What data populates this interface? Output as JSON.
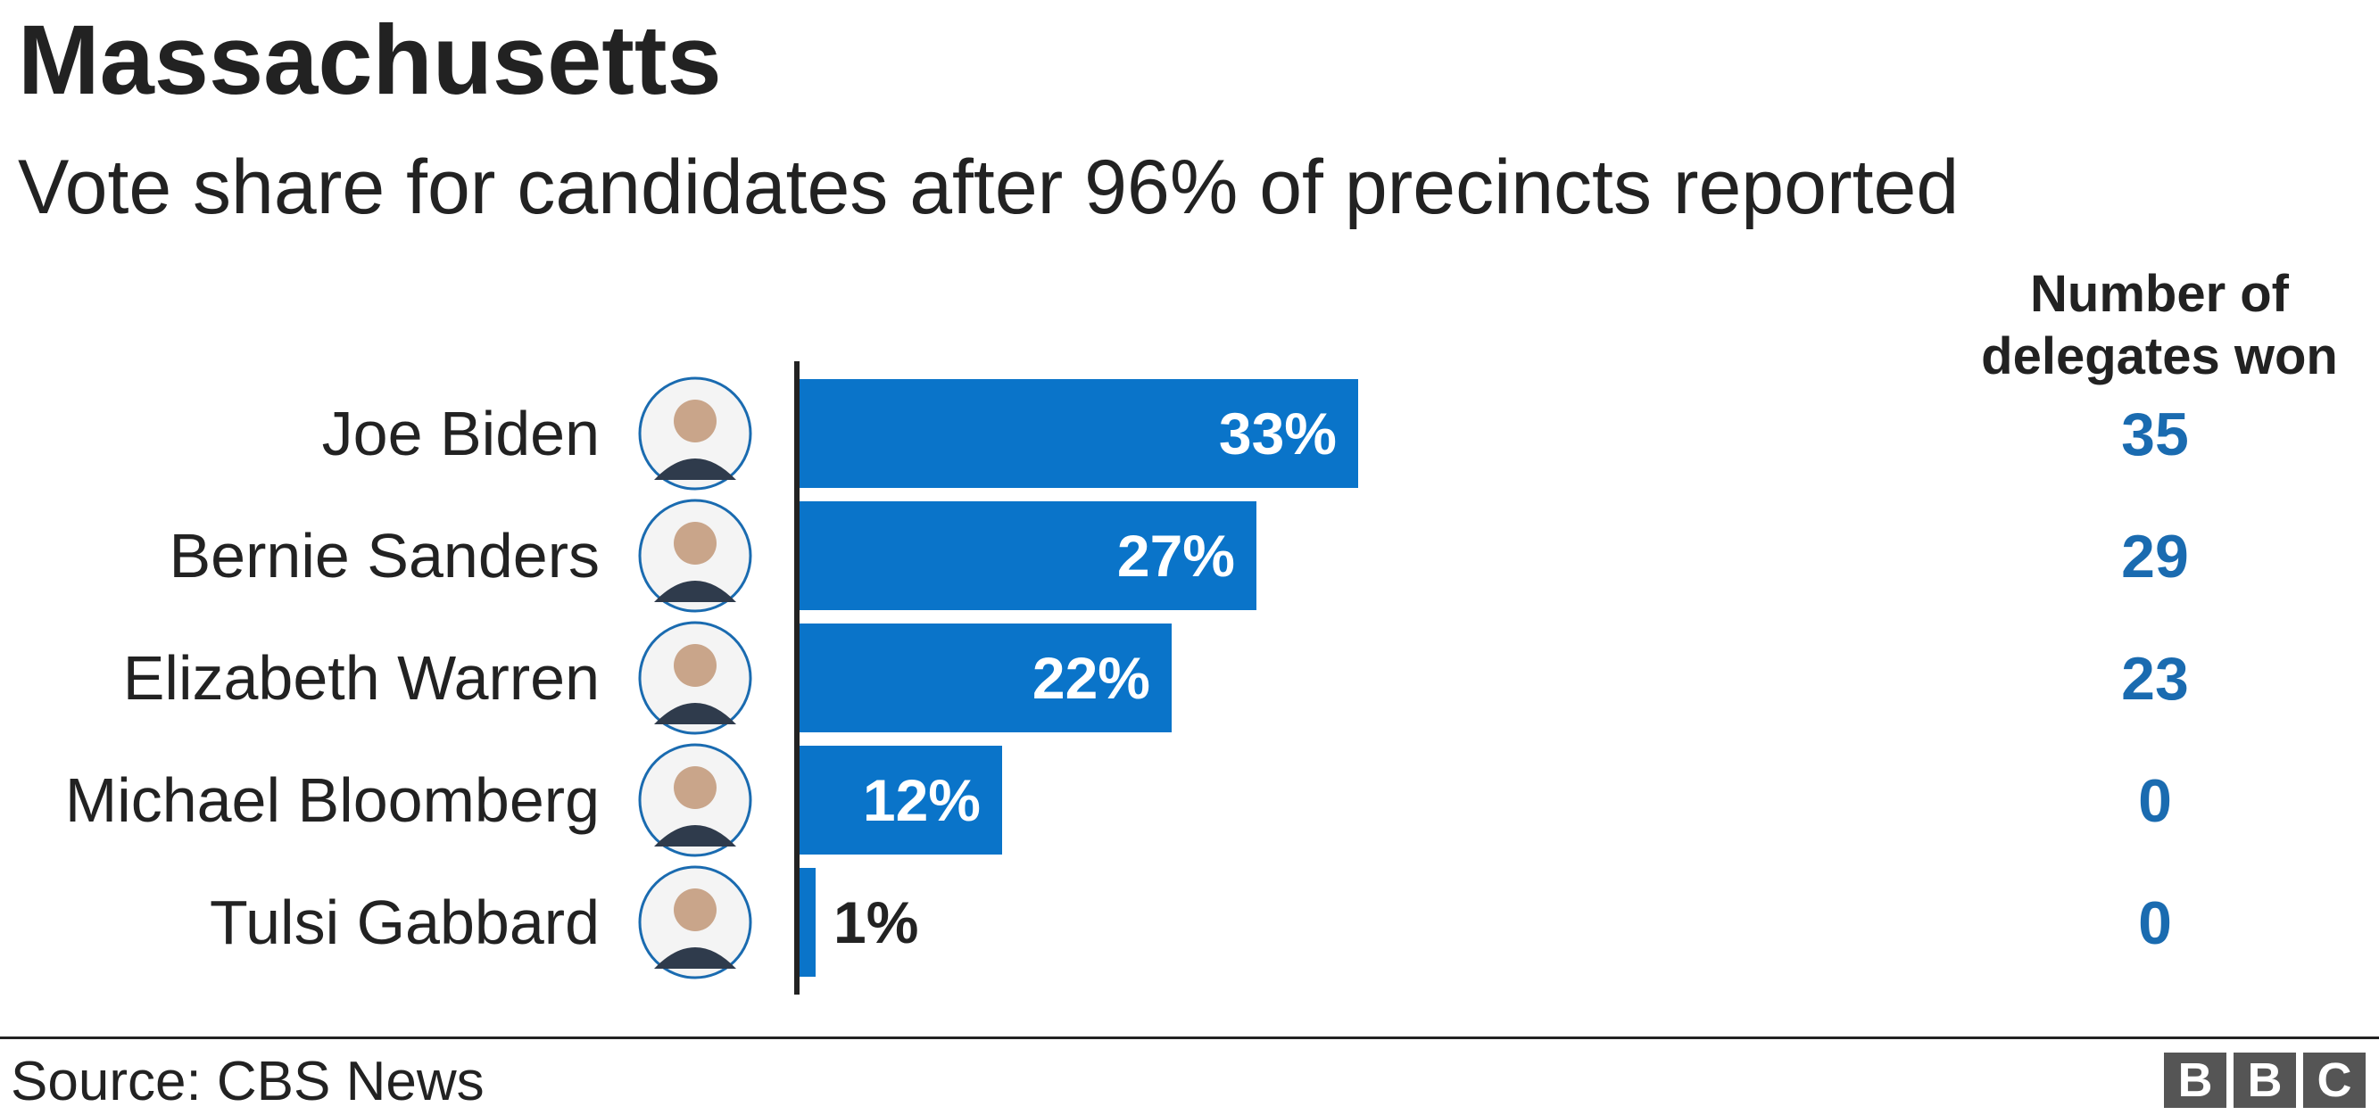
{
  "title": "Massachusetts",
  "subtitle": "Vote share for candidates after 96% of precincts reported",
  "delegates_header": "Number of delegates won",
  "source": "Source: CBS News",
  "logo": {
    "letters": [
      "B",
      "B",
      "C"
    ],
    "color": "#555555"
  },
  "colors": {
    "bar": "#0a74c9",
    "delegate_text": "#1a6bb0",
    "axis": "#222222"
  },
  "icons": [
    "portrait-joe-biden-icon",
    "portrait-bernie-sanders-icon",
    "portrait-elizabeth-warren-icon",
    "portrait-michael-bloomberg-icon",
    "portrait-tulsi-gabbard-icon"
  ],
  "chart_data": {
    "type": "bar",
    "orientation": "horizontal",
    "categories": [
      "Joe Biden",
      "Bernie Sanders",
      "Elizabeth Warren",
      "Michael Bloomberg",
      "Tulsi Gabbard"
    ],
    "values": [
      33,
      27,
      22,
      12,
      1
    ],
    "value_labels": [
      "33%",
      "27%",
      "22%",
      "12%",
      "1%"
    ],
    "delegates": [
      35,
      29,
      23,
      0,
      0
    ],
    "xlim": [
      0,
      100
    ],
    "grid": false,
    "legend": "none"
  }
}
